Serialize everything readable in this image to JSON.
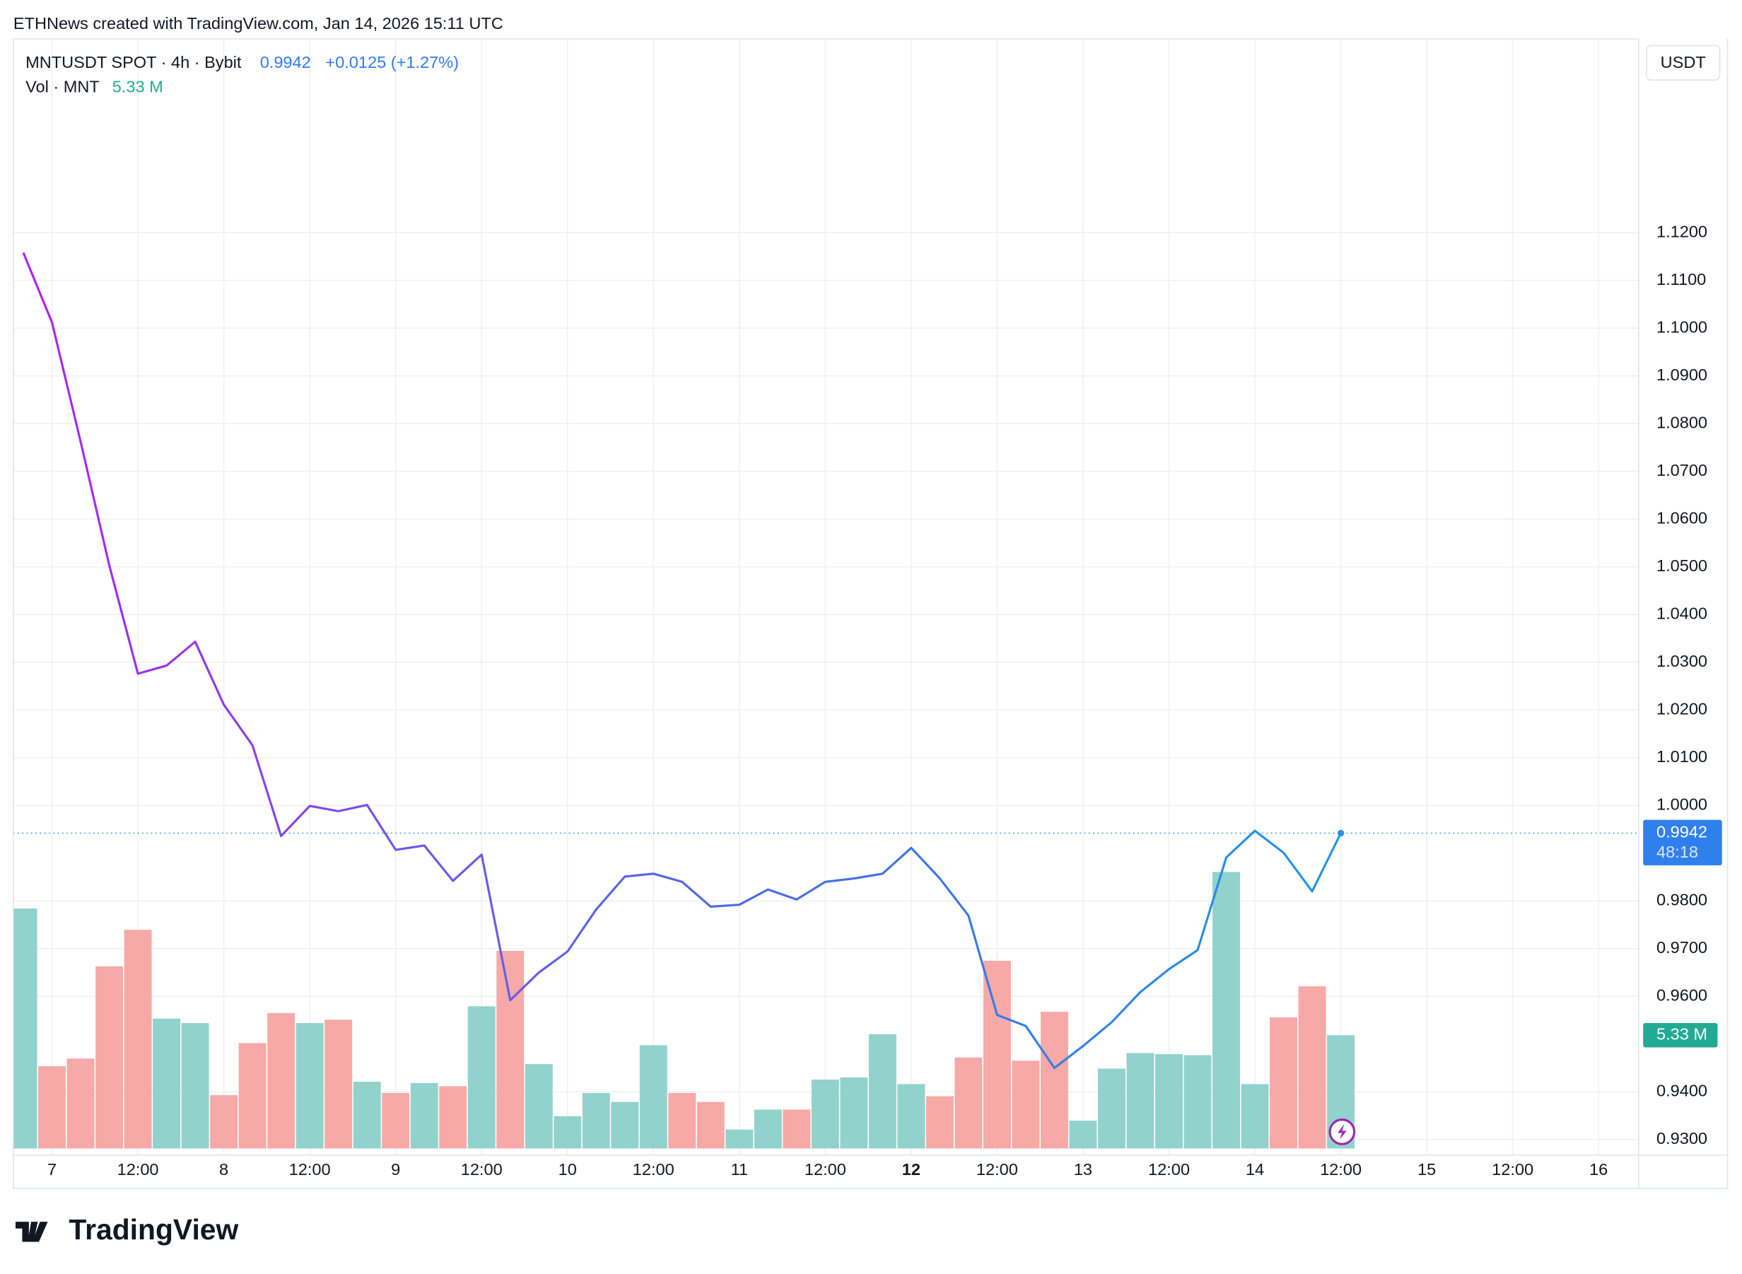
{
  "header": {
    "attribution": "ETHNews created with TradingView.com, Jan 14, 2026 15:11 UTC",
    "logo": "TradingView"
  },
  "chart_data": {
    "type": "line",
    "symbol": "MNTUSDT SPOT · 4h · Bybit",
    "last": "0.9942",
    "change": "+0.0125 (+1.27%)",
    "currency": "USDT",
    "price_label": "0.9942",
    "countdown": "48:18",
    "volume_title": "Vol · MNT",
    "volume_label": "5.33 M",
    "x": [
      0,
      1,
      2,
      3,
      4,
      5,
      6,
      7,
      8,
      9,
      10,
      11,
      12,
      13,
      14,
      15,
      16,
      17,
      18,
      19,
      20,
      21,
      22,
      23,
      24,
      25,
      26,
      27,
      28,
      29,
      30,
      31,
      32,
      33,
      34,
      35,
      36,
      37,
      38,
      39,
      40,
      41,
      42,
      43,
      44,
      45,
      46
    ],
    "xlim": [
      -0.35,
      56.4
    ],
    "xticks": [
      {
        "value": 1,
        "label": "7"
      },
      {
        "value": 4,
        "label": "12:00"
      },
      {
        "value": 7,
        "label": "8"
      },
      {
        "value": 10,
        "label": "12:00"
      },
      {
        "value": 13,
        "label": "9"
      },
      {
        "value": 16,
        "label": "12:00"
      },
      {
        "value": 19,
        "label": "10"
      },
      {
        "value": 22,
        "label": "12:00"
      },
      {
        "value": 25,
        "label": "11"
      },
      {
        "value": 28,
        "label": "12:00"
      },
      {
        "value": 31,
        "label": "12"
      },
      {
        "value": 34,
        "label": "12:00"
      },
      {
        "value": 37,
        "label": "13"
      },
      {
        "value": 40,
        "label": "12:00"
      },
      {
        "value": 43,
        "label": "14"
      },
      {
        "value": 46,
        "label": "12:00"
      },
      {
        "value": 49,
        "label": "15"
      },
      {
        "value": 52,
        "label": "12:00"
      },
      {
        "value": 55,
        "label": "16"
      }
    ],
    "bold_xtick": 10,
    "ylim": [
      0.9279,
      1.1606
    ],
    "yticks": [
      {
        "value": 0.93,
        "label": "0.9300"
      },
      {
        "value": 0.94,
        "label": "0.9400"
      },
      {
        "value": 0.96,
        "label": "0.9600"
      },
      {
        "value": 0.97,
        "label": "0.9700"
      },
      {
        "value": 0.98,
        "label": "0.9800"
      },
      {
        "value": 1.0,
        "label": "1.0000"
      },
      {
        "value": 1.01,
        "label": "1.0100"
      },
      {
        "value": 1.02,
        "label": "1.0200"
      },
      {
        "value": 1.03,
        "label": "1.0300"
      },
      {
        "value": 1.04,
        "label": "1.0400"
      },
      {
        "value": 1.05,
        "label": "1.0500"
      },
      {
        "value": 1.06,
        "label": "1.0600"
      },
      {
        "value": 1.07,
        "label": "1.0700"
      },
      {
        "value": 1.08,
        "label": "1.0800"
      },
      {
        "value": 1.09,
        "label": "1.0900"
      },
      {
        "value": 1.1,
        "label": "1.1000"
      },
      {
        "value": 1.11,
        "label": "1.1100"
      },
      {
        "value": 1.12,
        "label": "1.1200"
      }
    ],
    "y2lim": [
      0,
      26.6
    ],
    "grid": true,
    "series": [
      {
        "name": "MNTUSDT SPOT · 4h · Bybit",
        "colors": [
          "#b31ef0",
          "#6a5ae8",
          "#3d74e6",
          "#2196e8"
        ],
        "values": [
          1.1158,
          1.1012,
          1.0762,
          1.0503,
          1.0276,
          1.0293,
          1.0343,
          1.0211,
          1.0126,
          0.9936,
          0.9999,
          0.9988,
          1.0001,
          0.9907,
          0.9916,
          0.9842,
          0.9897,
          0.9592,
          0.965,
          0.9694,
          0.9782,
          0.9851,
          0.9857,
          0.984,
          0.9788,
          0.9792,
          0.9824,
          0.9803,
          0.984,
          0.9847,
          0.9857,
          0.9911,
          0.9847,
          0.9769,
          0.9561,
          0.9538,
          0.945,
          0.9496,
          0.9546,
          0.9609,
          0.9657,
          0.9697,
          0.9891,
          0.9947,
          0.9901,
          0.982,
          0.9942
        ]
      },
      {
        "name": "Vol · MNT",
        "type": "bar",
        "axis": "y2",
        "colors": [
          "#92d2cc",
          "#f7a9a7",
          "#f7a9a7",
          "#f7a9a7",
          "#f7a9a7",
          "#92d2cc",
          "#92d2cc",
          "#f7a9a7",
          "#f7a9a7",
          "#f7a9a7",
          "#92d2cc",
          "#f7a9a7",
          "#92d2cc",
          "#f7a9a7",
          "#92d2cc",
          "#f7a9a7",
          "#92d2cc",
          "#f7a9a7",
          "#92d2cc",
          "#92d2cc",
          "#92d2cc",
          "#92d2cc",
          "#92d2cc",
          "#f7a9a7",
          "#f7a9a7",
          "#92d2cc",
          "#92d2cc",
          "#f7a9a7",
          "#92d2cc",
          "#92d2cc",
          "#92d2cc",
          "#92d2cc",
          "#f7a9a7",
          "#f7a9a7",
          "#f7a9a7",
          "#f7a9a7",
          "#f7a9a7",
          "#92d2cc",
          "#92d2cc",
          "#92d2cc",
          "#92d2cc",
          "#92d2cc",
          "#92d2cc",
          "#92d2cc",
          "#f7a9a7",
          "#f7a9a7",
          "#92d2cc"
        ],
        "values": [
          11.29,
          3.87,
          4.23,
          8.57,
          10.29,
          6.11,
          5.9,
          2.51,
          4.96,
          6.37,
          5.9,
          6.06,
          3.14,
          2.61,
          3.08,
          2.93,
          6.69,
          9.3,
          3.97,
          1.52,
          2.61,
          2.19,
          4.86,
          2.61,
          2.19,
          0.89,
          1.83,
          1.83,
          3.24,
          3.34,
          5.38,
          3.03,
          2.46,
          4.28,
          8.83,
          4.13,
          6.43,
          1.31,
          3.76,
          4.49,
          4.44,
          4.39,
          13.01,
          3.03,
          6.17,
          7.63,
          5.33
        ]
      }
    ]
  }
}
